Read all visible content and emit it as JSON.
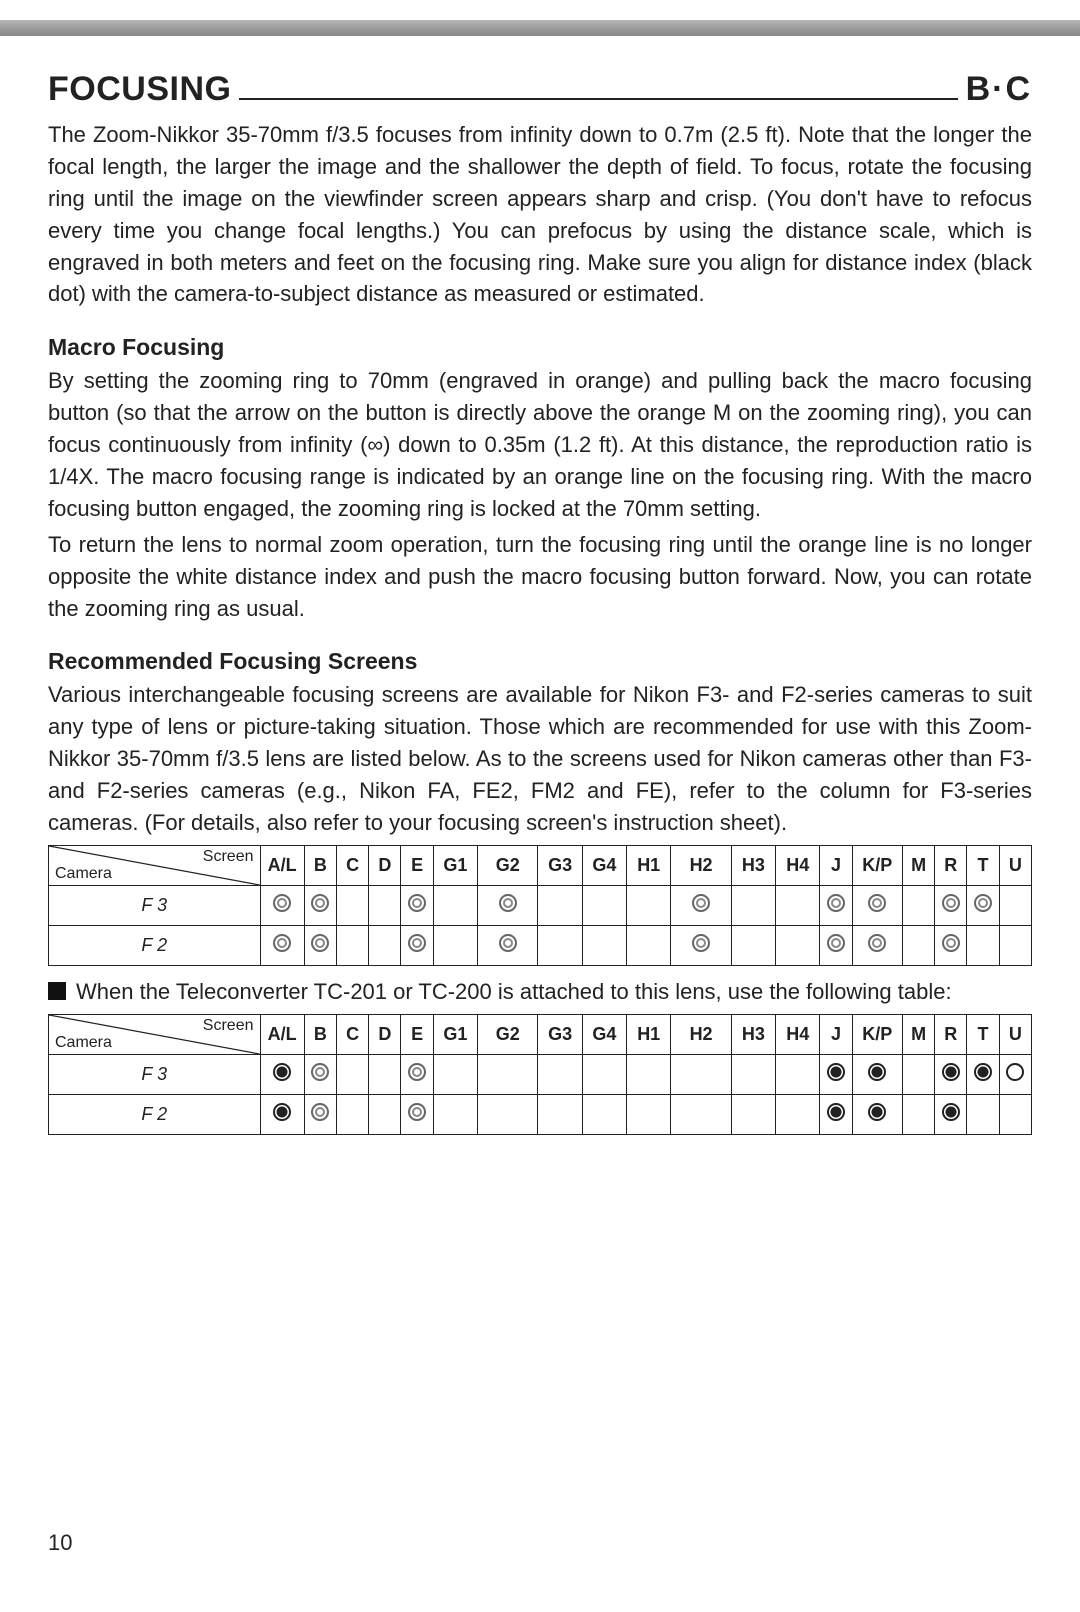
{
  "heading": {
    "left": "FOCUSING",
    "right": "B·C"
  },
  "intro": "The Zoom-Nikkor 35-70mm f/3.5 focuses from infinity down to 0.7m (2.5 ft). Note that the longer the focal length, the larger the image and the shallower the depth of field. To focus, rotate the focusing ring until the image on the viewfinder screen appears sharp and crisp. (You don't have to refocus every time you change focal lengths.) You can prefocus by using the distance scale, which is engraved in both meters and feet on the focusing ring. Make sure you align for distance index (black dot) with the camera-to-subject distance as measured or estimated.",
  "macro": {
    "title": "Macro Focusing",
    "p1": "By setting the zooming ring to 70mm (engraved in orange) and pulling back the macro focusing button (so that the arrow on the button is directly above the orange M on the zooming ring), you can focus continuously from infinity (∞) down to 0.35m (1.2 ft). At this distance, the reproduction ratio is 1/4X. The macro focusing range is indicated by an orange line on the focusing ring. With the macro focusing button engaged, the zooming ring is locked at the 70mm setting.",
    "p2": "To return the lens to normal zoom operation, turn the focusing ring until the orange line is no longer opposite the white distance index and push the macro focusing button forward. Now, you can rotate the zooming ring as usual."
  },
  "rec": {
    "title": "Recommended Focusing Screens",
    "p": "Various interchangeable focusing screens are available for Nikon F3- and F2-series cameras to suit any type of lens or picture-taking situation. Those which are recommended for use with this Zoom-Nikkor 35-70mm f/3.5 lens are listed below. As to the screens used for Nikon cameras other than F3- and F2-series cameras (e.g., Nikon FA, FE2, FM2 and FE), refer to the column for F3-series cameras. (For details, also refer to your focusing screen's instruction sheet)."
  },
  "table_labels": {
    "camera": "Camera",
    "screen": "Screen"
  },
  "columns": [
    "A/L",
    "B",
    "C",
    "D",
    "E",
    "G1",
    "G2",
    "G3",
    "G4",
    "H1",
    "H2",
    "H3",
    "H4",
    "J",
    "K/P",
    "M",
    "R",
    "T",
    "U"
  ],
  "col_widths": [
    "col-mid",
    "col-narrow",
    "col-narrow",
    "col-narrow",
    "col-narrow",
    "col-mid",
    "col-wide",
    "col-mid",
    "col-mid",
    "col-mid",
    "col-wide",
    "col-mid",
    "col-mid",
    "col-narrow",
    "col-kp",
    "col-narrow",
    "col-narrow",
    "col-narrow",
    "col-narrow"
  ],
  "table1": {
    "rows": [
      {
        "name": "F 3",
        "cells": [
          "ring",
          "ring",
          "",
          "",
          "ring",
          "",
          "ring",
          "",
          "",
          "",
          "ring",
          "",
          "",
          "ring",
          "ring",
          "",
          "ring",
          "ring",
          ""
        ]
      },
      {
        "name": "F 2",
        "cells": [
          "ring",
          "ring",
          "",
          "",
          "ring",
          "",
          "ring",
          "",
          "",
          "",
          "ring",
          "",
          "",
          "ring",
          "ring",
          "",
          "ring",
          "",
          ""
        ]
      }
    ]
  },
  "tc_note": "When the Teleconverter TC-201 or TC-200 is attached to this lens, use the following table:",
  "table2": {
    "rows": [
      {
        "name": "F 3",
        "cells": [
          "dot",
          "ring",
          "",
          "",
          "ring",
          "",
          "",
          "",
          "",
          "",
          "",
          "",
          "",
          "dot",
          "dot",
          "",
          "dot",
          "dot",
          "open"
        ]
      },
      {
        "name": "F 2",
        "cells": [
          "dot",
          "ring",
          "",
          "",
          "ring",
          "",
          "",
          "",
          "",
          "",
          "",
          "",
          "",
          "dot",
          "dot",
          "",
          "dot",
          "",
          ""
        ]
      }
    ]
  },
  "page_number": "10",
  "colors": {
    "text": "#222222",
    "background": "#ffffff",
    "topbar": "#9a9a9a",
    "ring": "#707070",
    "dot": "#151515"
  }
}
